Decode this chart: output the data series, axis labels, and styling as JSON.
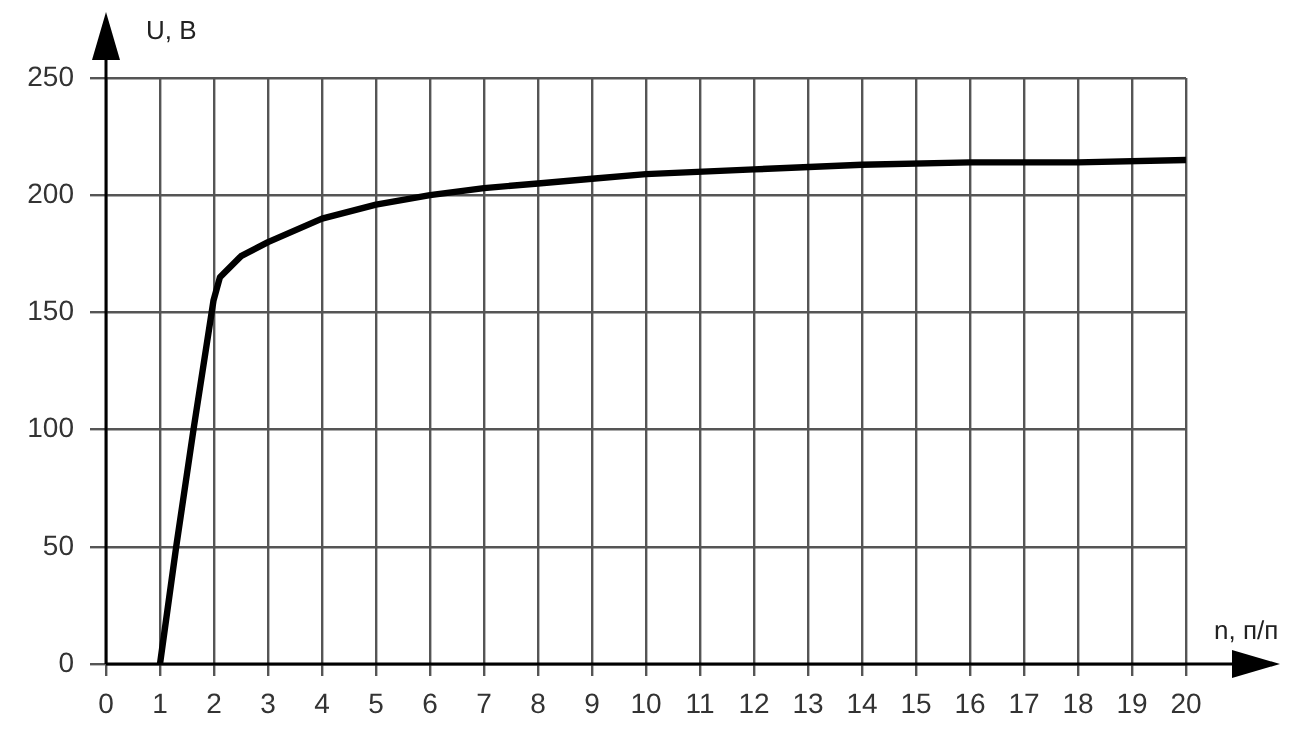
{
  "chart_data": {
    "type": "line",
    "xlabel": "n, п/п",
    "ylabel": "U, В",
    "x": [
      1,
      1.3,
      1.62,
      1.99,
      2.11,
      2.5,
      3,
      4,
      5,
      6,
      7,
      8,
      9,
      10,
      12,
      14,
      16,
      18,
      20
    ],
    "series": [
      {
        "color": "#000000",
        "values": [
          0,
          50,
          100,
          155,
          165,
          174,
          180,
          190,
          196,
          200,
          203,
          205,
          207,
          209,
          211,
          213,
          214,
          214,
          215
        ]
      }
    ],
    "xlim": [
      0,
      20
    ],
    "xticks": [
      0,
      1,
      2,
      3,
      4,
      5,
      6,
      7,
      8,
      9,
      10,
      11,
      12,
      13,
      14,
      15,
      16,
      17,
      18,
      19,
      20
    ],
    "ylim": [
      0,
      250
    ],
    "yticks": [
      0,
      50,
      100,
      150,
      200,
      250
    ],
    "grid": true,
    "legend": false,
    "marker": "none",
    "line_style": "solid"
  }
}
